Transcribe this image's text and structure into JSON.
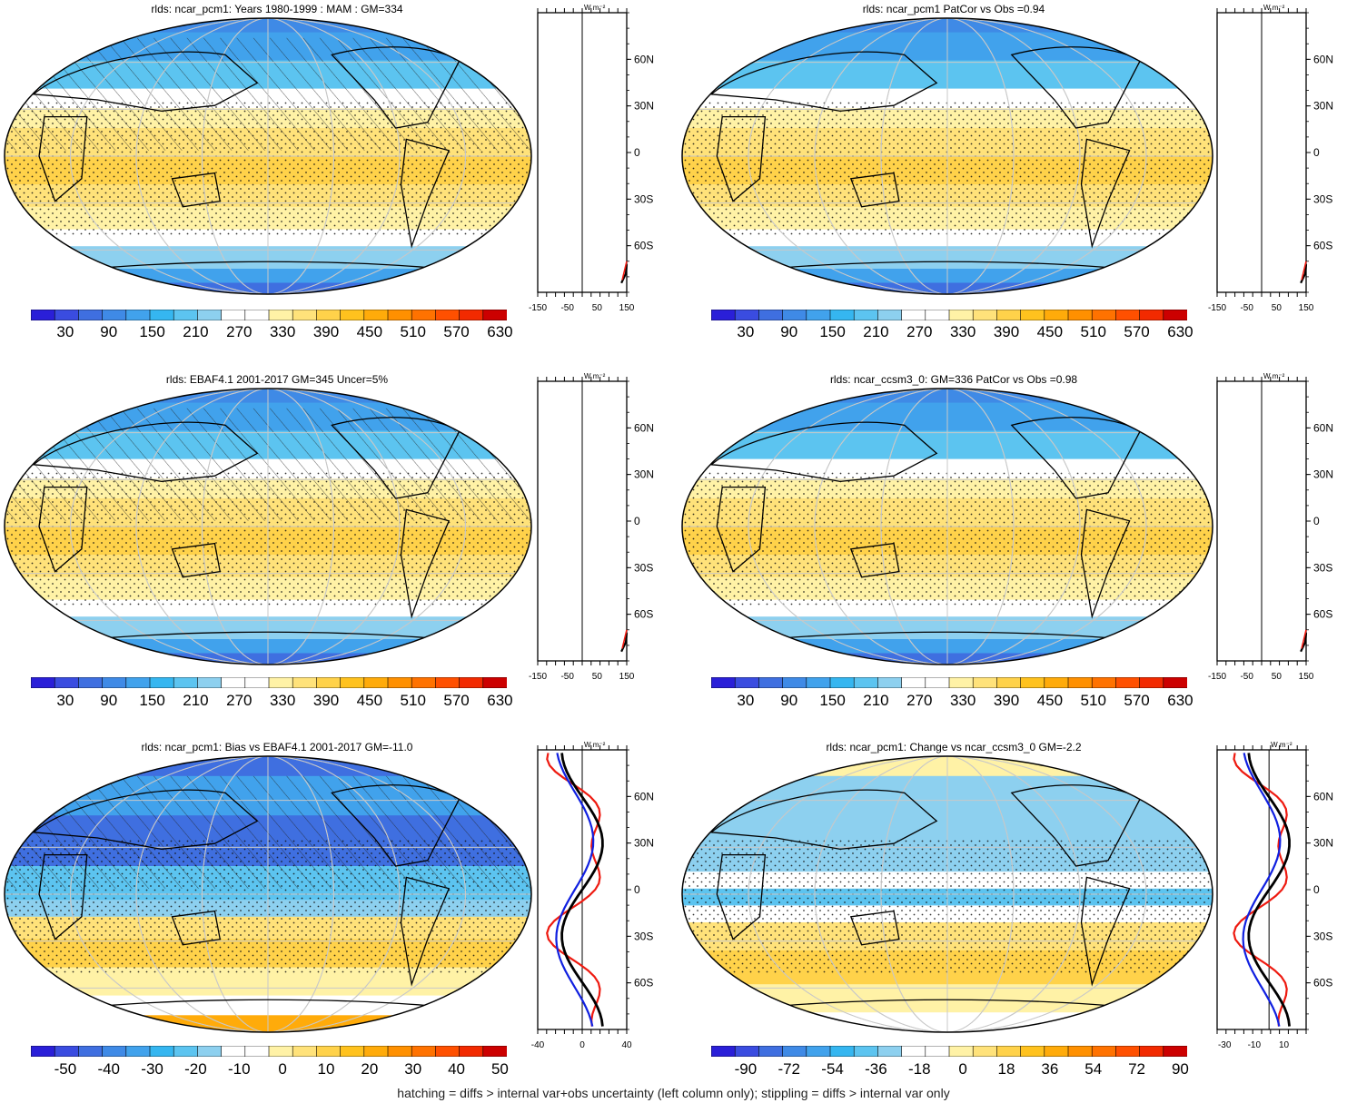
{
  "footer": "hatching = diffs > internal var+obs uncertainty (left column only); stippling = diffs > internal var only",
  "unit_label": "W m⁻²",
  "lat_ticks": [
    "60N",
    "30N",
    "0",
    "30S",
    "60S"
  ],
  "lat_values": [
    60,
    30,
    0,
    -30,
    -60
  ],
  "colors": {
    "abs_scale": [
      "#2a1fd8",
      "#3a4ce0",
      "#3f6fe0",
      "#3f8ae6",
      "#41a2ec",
      "#35b6f0",
      "#5cc4f0",
      "#8dd0ef",
      "#ffffff",
      "#ffffff",
      "#fff2a6",
      "#ffe27a",
      "#ffd24a",
      "#ffc21e",
      "#ffab0a",
      "#ff9000",
      "#ff7200",
      "#ff5000",
      "#f22a00",
      "#cc0000"
    ],
    "diff_scale": [
      "#2a1fd8",
      "#3a4ce0",
      "#3f6fe0",
      "#3f8ae6",
      "#41a2ec",
      "#35b6f0",
      "#5cc4f0",
      "#8dd0ef",
      "#ffffff",
      "#ffffff",
      "#fff2a6",
      "#ffe27a",
      "#ffd24a",
      "#ffc21e",
      "#ffab0a",
      "#ff9000",
      "#ff7200",
      "#ff5000",
      "#f22a00",
      "#cc0000"
    ],
    "profile_black": "#000000",
    "profile_blue": "#1020e0",
    "profile_red": "#ee1a10"
  },
  "panels": [
    {
      "id": "p1",
      "title": "rlds: ncar_pcm1: Years 1980-1999 : MAM : GM=334",
      "cbar_labels": [
        "30",
        "90",
        "150",
        "210",
        "270",
        "330",
        "390",
        "450",
        "510",
        "570",
        "630"
      ],
      "profile_ticks": [
        "-150",
        "-50",
        "50",
        "150"
      ],
      "profile_xlim": [
        -150,
        150
      ],
      "hatch": true,
      "kind": "abs"
    },
    {
      "id": "p2",
      "title": "rlds: ncar_pcm1 PatCor vs Obs =0.94",
      "cbar_labels": [
        "30",
        "90",
        "150",
        "210",
        "270",
        "330",
        "390",
        "450",
        "510",
        "570",
        "630"
      ],
      "profile_ticks": [
        "-150",
        "-50",
        "50",
        "150"
      ],
      "profile_xlim": [
        -150,
        150
      ],
      "hatch": false,
      "kind": "abs"
    },
    {
      "id": "p3",
      "title": "rlds: EBAF4.1 2001-2017 GM=345 Uncer=5%",
      "cbar_labels": [
        "30",
        "90",
        "150",
        "210",
        "270",
        "330",
        "390",
        "450",
        "510",
        "570",
        "630"
      ],
      "profile_ticks": [
        "-150",
        "-50",
        "50",
        "150"
      ],
      "profile_xlim": [
        -150,
        150
      ],
      "hatch": true,
      "kind": "abs"
    },
    {
      "id": "p4",
      "title": "rlds: ncar_ccsm3_0: GM=336 PatCor vs Obs =0.98",
      "cbar_labels": [
        "30",
        "90",
        "150",
        "210",
        "270",
        "330",
        "390",
        "450",
        "510",
        "570",
        "630"
      ],
      "profile_ticks": [
        "-150",
        "-50",
        "50",
        "150"
      ],
      "profile_xlim": [
        -150,
        150
      ],
      "hatch": false,
      "kind": "abs"
    },
    {
      "id": "p5",
      "title": "rlds: ncar_pcm1: Bias vs EBAF4.1 2001-2017 GM=-11.0",
      "cbar_labels": [
        "-50",
        "-40",
        "-30",
        "-20",
        "-10",
        "0",
        "10",
        "20",
        "30",
        "40",
        "50"
      ],
      "profile_ticks": [
        "-40",
        "0",
        "40"
      ],
      "profile_xlim": [
        -40,
        40
      ],
      "hatch": true,
      "kind": "bias"
    },
    {
      "id": "p6",
      "title": "rlds: ncar_pcm1: Change vs ncar_ccsm3_0 GM=-2.2",
      "cbar_labels": [
        "-90",
        "-72",
        "-54",
        "-36",
        "-18",
        "0",
        "18",
        "36",
        "54",
        "72",
        "90"
      ],
      "profile_ticks": [
        "-30",
        "-10",
        "10"
      ],
      "profile_xlim": [
        -35,
        25
      ],
      "hatch": false,
      "kind": "change"
    }
  ]
}
